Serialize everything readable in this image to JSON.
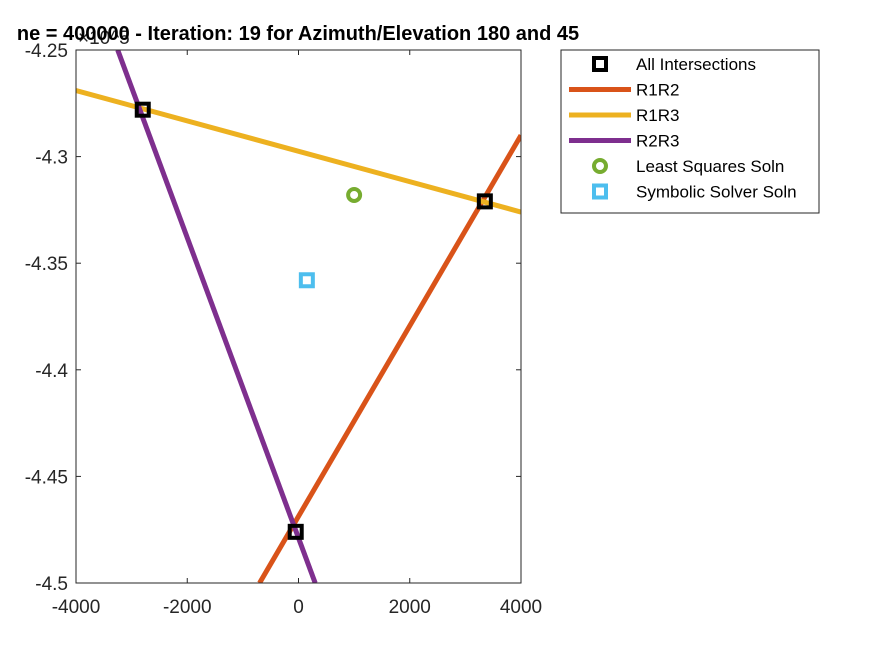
{
  "chart_data": {
    "type": "line",
    "title": "ne = 400000 - Iteration: 19 for Azimuth/Elevation 180 and 45",
    "xlim": [
      -4000,
      4000
    ],
    "ylim": [
      -4.5,
      -4.25
    ],
    "y_exponent_label": "×10^5",
    "x_ticks": [
      -4000,
      -2000,
      0,
      2000,
      4000
    ],
    "x_tick_labels": [
      "-4000",
      "-2000",
      "0",
      "2000",
      "4000"
    ],
    "y_ticks": [
      -4.5,
      -4.45,
      -4.4,
      -4.35,
      -4.3,
      -4.25
    ],
    "y_tick_labels": [
      "-4.5",
      "-4.45",
      "-4.4",
      "-4.35",
      "-4.3",
      "-4.25"
    ],
    "grid": false,
    "legend_position": "outside-top-right",
    "series": [
      {
        "name": "All Intersections",
        "kind": "marker",
        "marker": "square",
        "color": "#000000",
        "points": [
          [
            -2800,
            -4.278
          ],
          [
            3350,
            -4.321
          ],
          [
            -50,
            -4.476
          ]
        ]
      },
      {
        "name": "R1R2",
        "kind": "line",
        "color": "#D95319",
        "points": [
          [
            -700,
            -4.5
          ],
          [
            4000,
            -4.29
          ]
        ]
      },
      {
        "name": "R1R3",
        "kind": "line",
        "color": "#EDB120",
        "points": [
          [
            -4000,
            -4.269
          ],
          [
            4000,
            -4.326
          ]
        ]
      },
      {
        "name": "R2R3",
        "kind": "line",
        "color": "#7E2F8E",
        "points": [
          [
            -3250,
            -4.25
          ],
          [
            300,
            -4.5
          ]
        ]
      },
      {
        "name": "Least Squares Soln",
        "kind": "marker",
        "marker": "circle",
        "color": "#77AC30",
        "points": [
          [
            1000,
            -4.318
          ]
        ]
      },
      {
        "name": "Symbolic Solver Soln",
        "kind": "marker",
        "marker": "square",
        "color": "#4DBEEE",
        "points": [
          [
            150,
            -4.358
          ]
        ]
      }
    ]
  }
}
